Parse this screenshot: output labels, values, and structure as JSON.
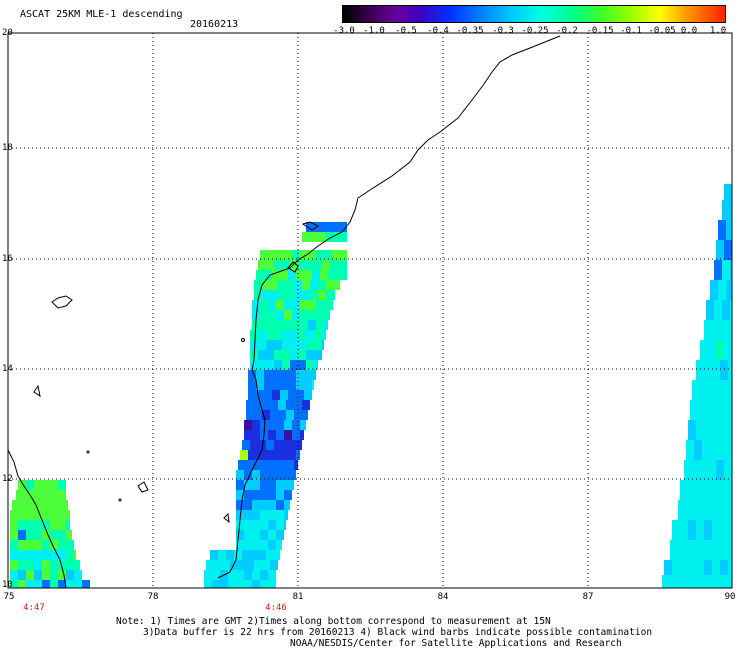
{
  "title": "ASCAT 25KM MLE-1 descending",
  "date": "20160213",
  "colorbar": {
    "labels": [
      "-3.0",
      "-1.0",
      "-0.5",
      "-0.4",
      "-0.35",
      "-0.3",
      "-0.25",
      "-0.2",
      "-0.15",
      "-0.1",
      "-0.05",
      "0.0",
      "1.0"
    ]
  },
  "lat_labels": [
    "20",
    "18",
    "16",
    "14",
    "12",
    "10"
  ],
  "lon_labels": [
    "75",
    "78",
    "81",
    "84",
    "87",
    "90"
  ],
  "pass_times": [
    "4:47",
    "4:46"
  ],
  "notes": {
    "line1": "Note: 1) Times are GMT 2)Times along bottom correspond to measurement at 15N",
    "line2": "3)Data buffer is 22 hrs from 20160213 4) Black wind barbs indicate possible contamination",
    "line3": "NOAA/NESDIS/Center for Satellite Applications and Research"
  }
}
